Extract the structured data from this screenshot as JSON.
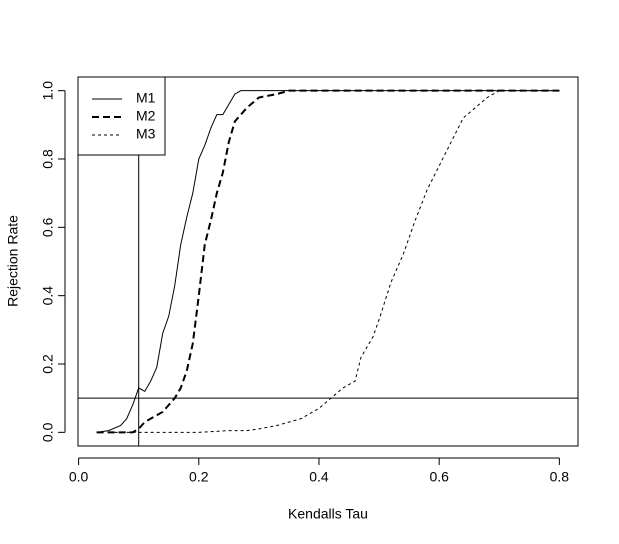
{
  "chart_data": {
    "type": "line",
    "xlabel": "Kendalls Tau",
    "ylabel": "Rejection Rate",
    "xlim": [
      -0.001,
      0.831
    ],
    "ylim": [
      -0.04,
      1.04
    ],
    "xticks": [
      {
        "value": 0,
        "label": "0.0"
      },
      0.2,
      0.4,
      0.6,
      0.8
    ],
    "yticks": [
      {
        "value": 0,
        "label": "0.0"
      },
      0.2,
      0.4,
      0.6,
      0.8,
      {
        "value": 1,
        "label": "1.0"
      }
    ],
    "hlines": [
      0.1
    ],
    "vlines": [
      0.1
    ],
    "legend": "top-left",
    "series": [
      {
        "name": "M1",
        "color": "#000000",
        "dash": "none",
        "width": 1,
        "x": [
          0.03,
          0.05,
          0.07,
          0.08,
          0.09,
          0.1,
          0.11,
          0.12,
          0.13,
          0.14,
          0.15,
          0.16,
          0.17,
          0.18,
          0.19,
          0.2,
          0.21,
          0.22,
          0.23,
          0.24,
          0.25,
          0.26,
          0.27,
          0.8
        ],
        "values": [
          0,
          0.005,
          0.02,
          0.04,
          0.08,
          0.13,
          0.12,
          0.15,
          0.19,
          0.29,
          0.34,
          0.43,
          0.55,
          0.63,
          0.7,
          0.8,
          0.84,
          0.89,
          0.93,
          0.93,
          0.96,
          0.99,
          1.0,
          1.0
        ]
      },
      {
        "name": "M2",
        "color": "#000000",
        "dash": "7,4",
        "width": 2,
        "x": [
          0.03,
          0.07,
          0.09,
          0.1,
          0.11,
          0.12,
          0.13,
          0.14,
          0.15,
          0.16,
          0.17,
          0.18,
          0.19,
          0.2,
          0.21,
          0.22,
          0.23,
          0.24,
          0.25,
          0.26,
          0.27,
          0.28,
          0.3,
          0.33,
          0.35,
          0.8
        ],
        "values": [
          0,
          0,
          0,
          0.01,
          0.03,
          0.04,
          0.05,
          0.06,
          0.08,
          0.1,
          0.13,
          0.18,
          0.26,
          0.4,
          0.55,
          0.62,
          0.7,
          0.76,
          0.85,
          0.91,
          0.93,
          0.95,
          0.98,
          0.99,
          1.0,
          1.0
        ]
      },
      {
        "name": "M3",
        "color": "#000000",
        "dash": "3,3",
        "width": 1,
        "x": [
          0.05,
          0.1,
          0.2,
          0.25,
          0.28,
          0.3,
          0.33,
          0.35,
          0.37,
          0.4,
          0.42,
          0.44,
          0.46,
          0.47,
          0.49,
          0.5,
          0.52,
          0.54,
          0.56,
          0.58,
          0.6,
          0.62,
          0.64,
          0.66,
          0.68,
          0.7,
          0.8
        ],
        "values": [
          0,
          0,
          0,
          0.005,
          0.005,
          0.01,
          0.02,
          0.03,
          0.04,
          0.07,
          0.1,
          0.13,
          0.15,
          0.22,
          0.28,
          0.33,
          0.44,
          0.52,
          0.62,
          0.71,
          0.78,
          0.85,
          0.92,
          0.95,
          0.98,
          1.0,
          1.0
        ]
      }
    ]
  }
}
